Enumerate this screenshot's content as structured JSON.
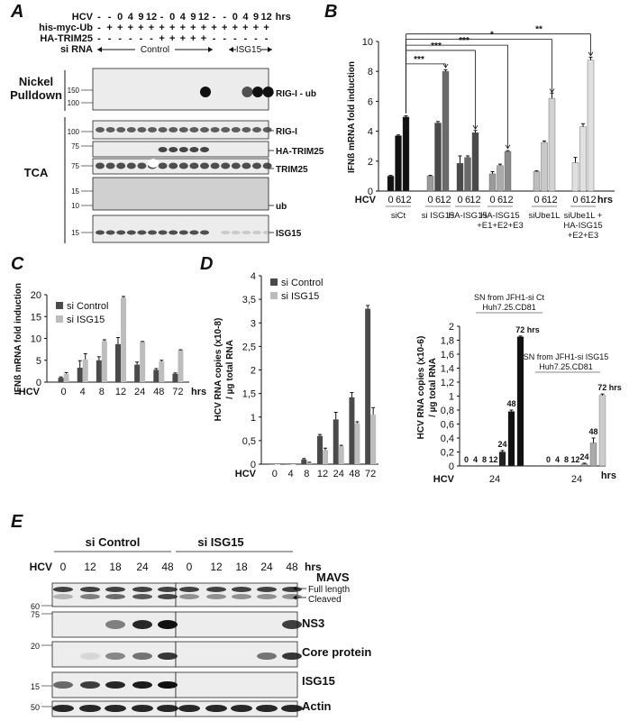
{
  "panel_labels": {
    "a": "A",
    "b": "B",
    "c": "C",
    "d": "D",
    "e": "E"
  },
  "colors": {
    "black": "#111111",
    "dark_gray": "#4a4a4a",
    "mid_gray": "#7d7d7d",
    "light_gray": "#bdbdbd",
    "lighter_gray": "#d9d9d9"
  },
  "panel_a": {
    "header": {
      "hcv_label": "HCV",
      "hcv_values": [
        "-",
        "-",
        "0",
        "4",
        "9",
        "12",
        "-",
        "0",
        "4",
        "9",
        "12",
        "-",
        "-",
        "0",
        "4",
        "9",
        "12"
      ],
      "hrs": "hrs",
      "ub_label": "his-myc-Ub",
      "ub_values": [
        "-",
        "+",
        "+",
        "+",
        "+",
        "+",
        "+",
        "+",
        "+",
        "+",
        "+",
        "+",
        "+",
        "+",
        "+",
        "+",
        "+"
      ],
      "trim_label": "HA-TRIM25",
      "trim_values": [
        "-",
        "-",
        "-",
        "-",
        "-",
        "-",
        "+",
        "+",
        "+",
        "+",
        "+",
        "-",
        "-",
        "-",
        "-",
        "-",
        "-"
      ],
      "sirna_label": "si RNA",
      "control": "Control",
      "isg15": "ISG15"
    },
    "group_labels": {
      "nickel": "Nickel",
      "pulldown": "Pulldown",
      "tca": "TCA"
    },
    "blots": [
      {
        "name": "RIG-I - ub",
        "markers": [
          "150",
          "100"
        ]
      },
      {
        "name": "RIG-I",
        "markers": [
          "100"
        ]
      },
      {
        "name": "HA-TRIM25",
        "markers": [
          "75"
        ]
      },
      {
        "name": "TRIM25",
        "markers": [
          "75"
        ]
      },
      {
        "name": "ub",
        "markers": [
          "15",
          "10"
        ]
      },
      {
        "name": "ISG15",
        "markers": [
          "15"
        ]
      }
    ]
  },
  "chart_data": [
    {
      "panel": "B",
      "type": "bar",
      "ylabel": "IFNß mRNA fold induction",
      "ylim": [
        0,
        10
      ],
      "yticks": [
        "0",
        "2",
        "4",
        "6",
        "8",
        "10"
      ],
      "x_label": "HCV",
      "unit": "hrs",
      "tick_labels": [
        "0",
        "6",
        "12"
      ],
      "groups": [
        {
          "name": "siCt",
          "values": [
            1.0,
            3.7,
            4.95
          ],
          "err": [
            0.05,
            0.05,
            0.08
          ]
        },
        {
          "name": "si ISG15",
          "values": [
            1.0,
            4.55,
            8.0
          ],
          "err": [
            0.05,
            0.1,
            0.1
          ]
        },
        {
          "name": "HA-ISG15",
          "values": [
            1.85,
            2.25,
            3.9
          ],
          "err": [
            0.5,
            0.1,
            0.15
          ]
        },
        {
          "name": "HA-ISG15 +E1+E2+E3",
          "values": [
            1.15,
            1.7,
            2.65
          ],
          "err": [
            0.15,
            0.1,
            0.05
          ]
        },
        {
          "name": "siUbe1L",
          "values": [
            1.3,
            3.25,
            6.2
          ],
          "err": [
            0.05,
            0.1,
            0.35
          ]
        },
        {
          "name": "siUbe1L + HA-ISG15 +E2+E3",
          "values": [
            1.9,
            4.3,
            8.75
          ],
          "err": [
            0.35,
            0.2,
            0.2
          ]
        }
      ],
      "significance": [
        "***",
        "***",
        "***",
        "*",
        "**"
      ]
    },
    {
      "panel": "C",
      "type": "bar",
      "ylabel": "IFNß mRNA fold induction",
      "ylim": [
        0,
        20
      ],
      "yticks": [
        "0",
        "5",
        "10",
        "15",
        "20"
      ],
      "x_label": "HCV",
      "unit": "hrs",
      "categories": [
        "0",
        "4",
        "8",
        "12",
        "24",
        "48",
        "72"
      ],
      "series": [
        {
          "name": "si Control",
          "values": [
            1.0,
            3.3,
            5.0,
            8.7,
            4.0,
            2.8,
            1.9
          ],
          "err": [
            0.2,
            1.6,
            0.8,
            1.5,
            0.6,
            0.3,
            0.2
          ]
        },
        {
          "name": "si ISG15",
          "values": [
            1.9,
            5.2,
            9.4,
            19.3,
            9.2,
            4.7,
            7.3
          ],
          "err": [
            0.3,
            1.3,
            0.3,
            0.3,
            0.1,
            0.3,
            0.1
          ]
        }
      ]
    },
    {
      "panel": "D-left",
      "type": "bar",
      "ylabel": "HCV RNA copies (x10-8) / µg total RNA",
      "ylim": [
        0,
        4
      ],
      "yticks": [
        "0",
        "0,5",
        "1",
        "1,5",
        "2",
        "2,5",
        "3",
        "3,5",
        "4"
      ],
      "x_label": "HCV",
      "categories": [
        "0",
        "4",
        "8",
        "12",
        "24",
        "48",
        "72"
      ],
      "series": [
        {
          "name": "si Control",
          "values": [
            0.0,
            0.0,
            0.1,
            0.6,
            0.95,
            1.42,
            3.3
          ],
          "err": [
            0.0,
            0.0,
            0.02,
            0.03,
            0.15,
            0.1,
            0.07
          ]
        },
        {
          "name": "si ISG15",
          "values": [
            0.0,
            0.0,
            0.03,
            0.3,
            0.38,
            0.87,
            1.05
          ],
          "err": [
            0.0,
            0.0,
            0.01,
            0.04,
            0.02,
            0.03,
            0.15
          ]
        }
      ]
    },
    {
      "panel": "D-right",
      "type": "bar",
      "ylabel": "HCV RNA copies (x10-6) / µg total RNA",
      "ylim": [
        0,
        2
      ],
      "yticks": [
        "0",
        "0,2",
        "0,4",
        "0,6",
        "0,8",
        "1",
        "1,2",
        "1,4",
        "1,6",
        "1,8",
        "2"
      ],
      "x_label": "HCV",
      "unit": "hrs",
      "group_x_labels": [
        "24",
        "24"
      ],
      "groups": [
        {
          "name": "SN from JFH1-si Ct Huh7.25.CD81",
          "line1": "SN from JFH1-si Ct",
          "line2": "Huh7.25.CD81",
          "categories": [
            "0",
            "4",
            "8",
            "12",
            "24",
            "48",
            "72 hrs"
          ],
          "values": [
            0.0,
            0.0,
            0.0,
            0.0,
            0.2,
            0.78,
            1.85
          ],
          "err": [
            0.0,
            0.0,
            0.0,
            0.0,
            0.02,
            0.02,
            0.01
          ]
        },
        {
          "name": "SN from JFH1-si ISG15 Huh7.25.CD81",
          "line1": "SN from JFH1-si ISG15",
          "line2": "Huh7.25.CD81",
          "categories": [
            "0",
            "4",
            "8",
            "12",
            "24",
            "48",
            "72 hrs"
          ],
          "values": [
            0.0,
            0.0,
            0.0,
            0.0,
            0.03,
            0.33,
            1.01
          ],
          "err": [
            0.0,
            0.0,
            0.0,
            0.0,
            0.01,
            0.07,
            0.02
          ]
        }
      ]
    }
  ],
  "panel_e": {
    "hcv_label": "HCV",
    "hrs": "hrs",
    "group1": "si Control",
    "group2": "si ISG15",
    "times": [
      "0",
      "12",
      "18",
      "24",
      "48"
    ],
    "blots": [
      {
        "name": "MAVS",
        "markers": [
          "60"
        ],
        "notes": [
          "Full length",
          "Cleaved"
        ]
      },
      {
        "name": "NS3",
        "markers": [
          "75"
        ]
      },
      {
        "name": "Core protein",
        "markers": [
          "20"
        ]
      },
      {
        "name": "ISG15",
        "markers": [
          "15"
        ]
      },
      {
        "name": "Actin",
        "markers": [
          "50"
        ]
      }
    ]
  }
}
